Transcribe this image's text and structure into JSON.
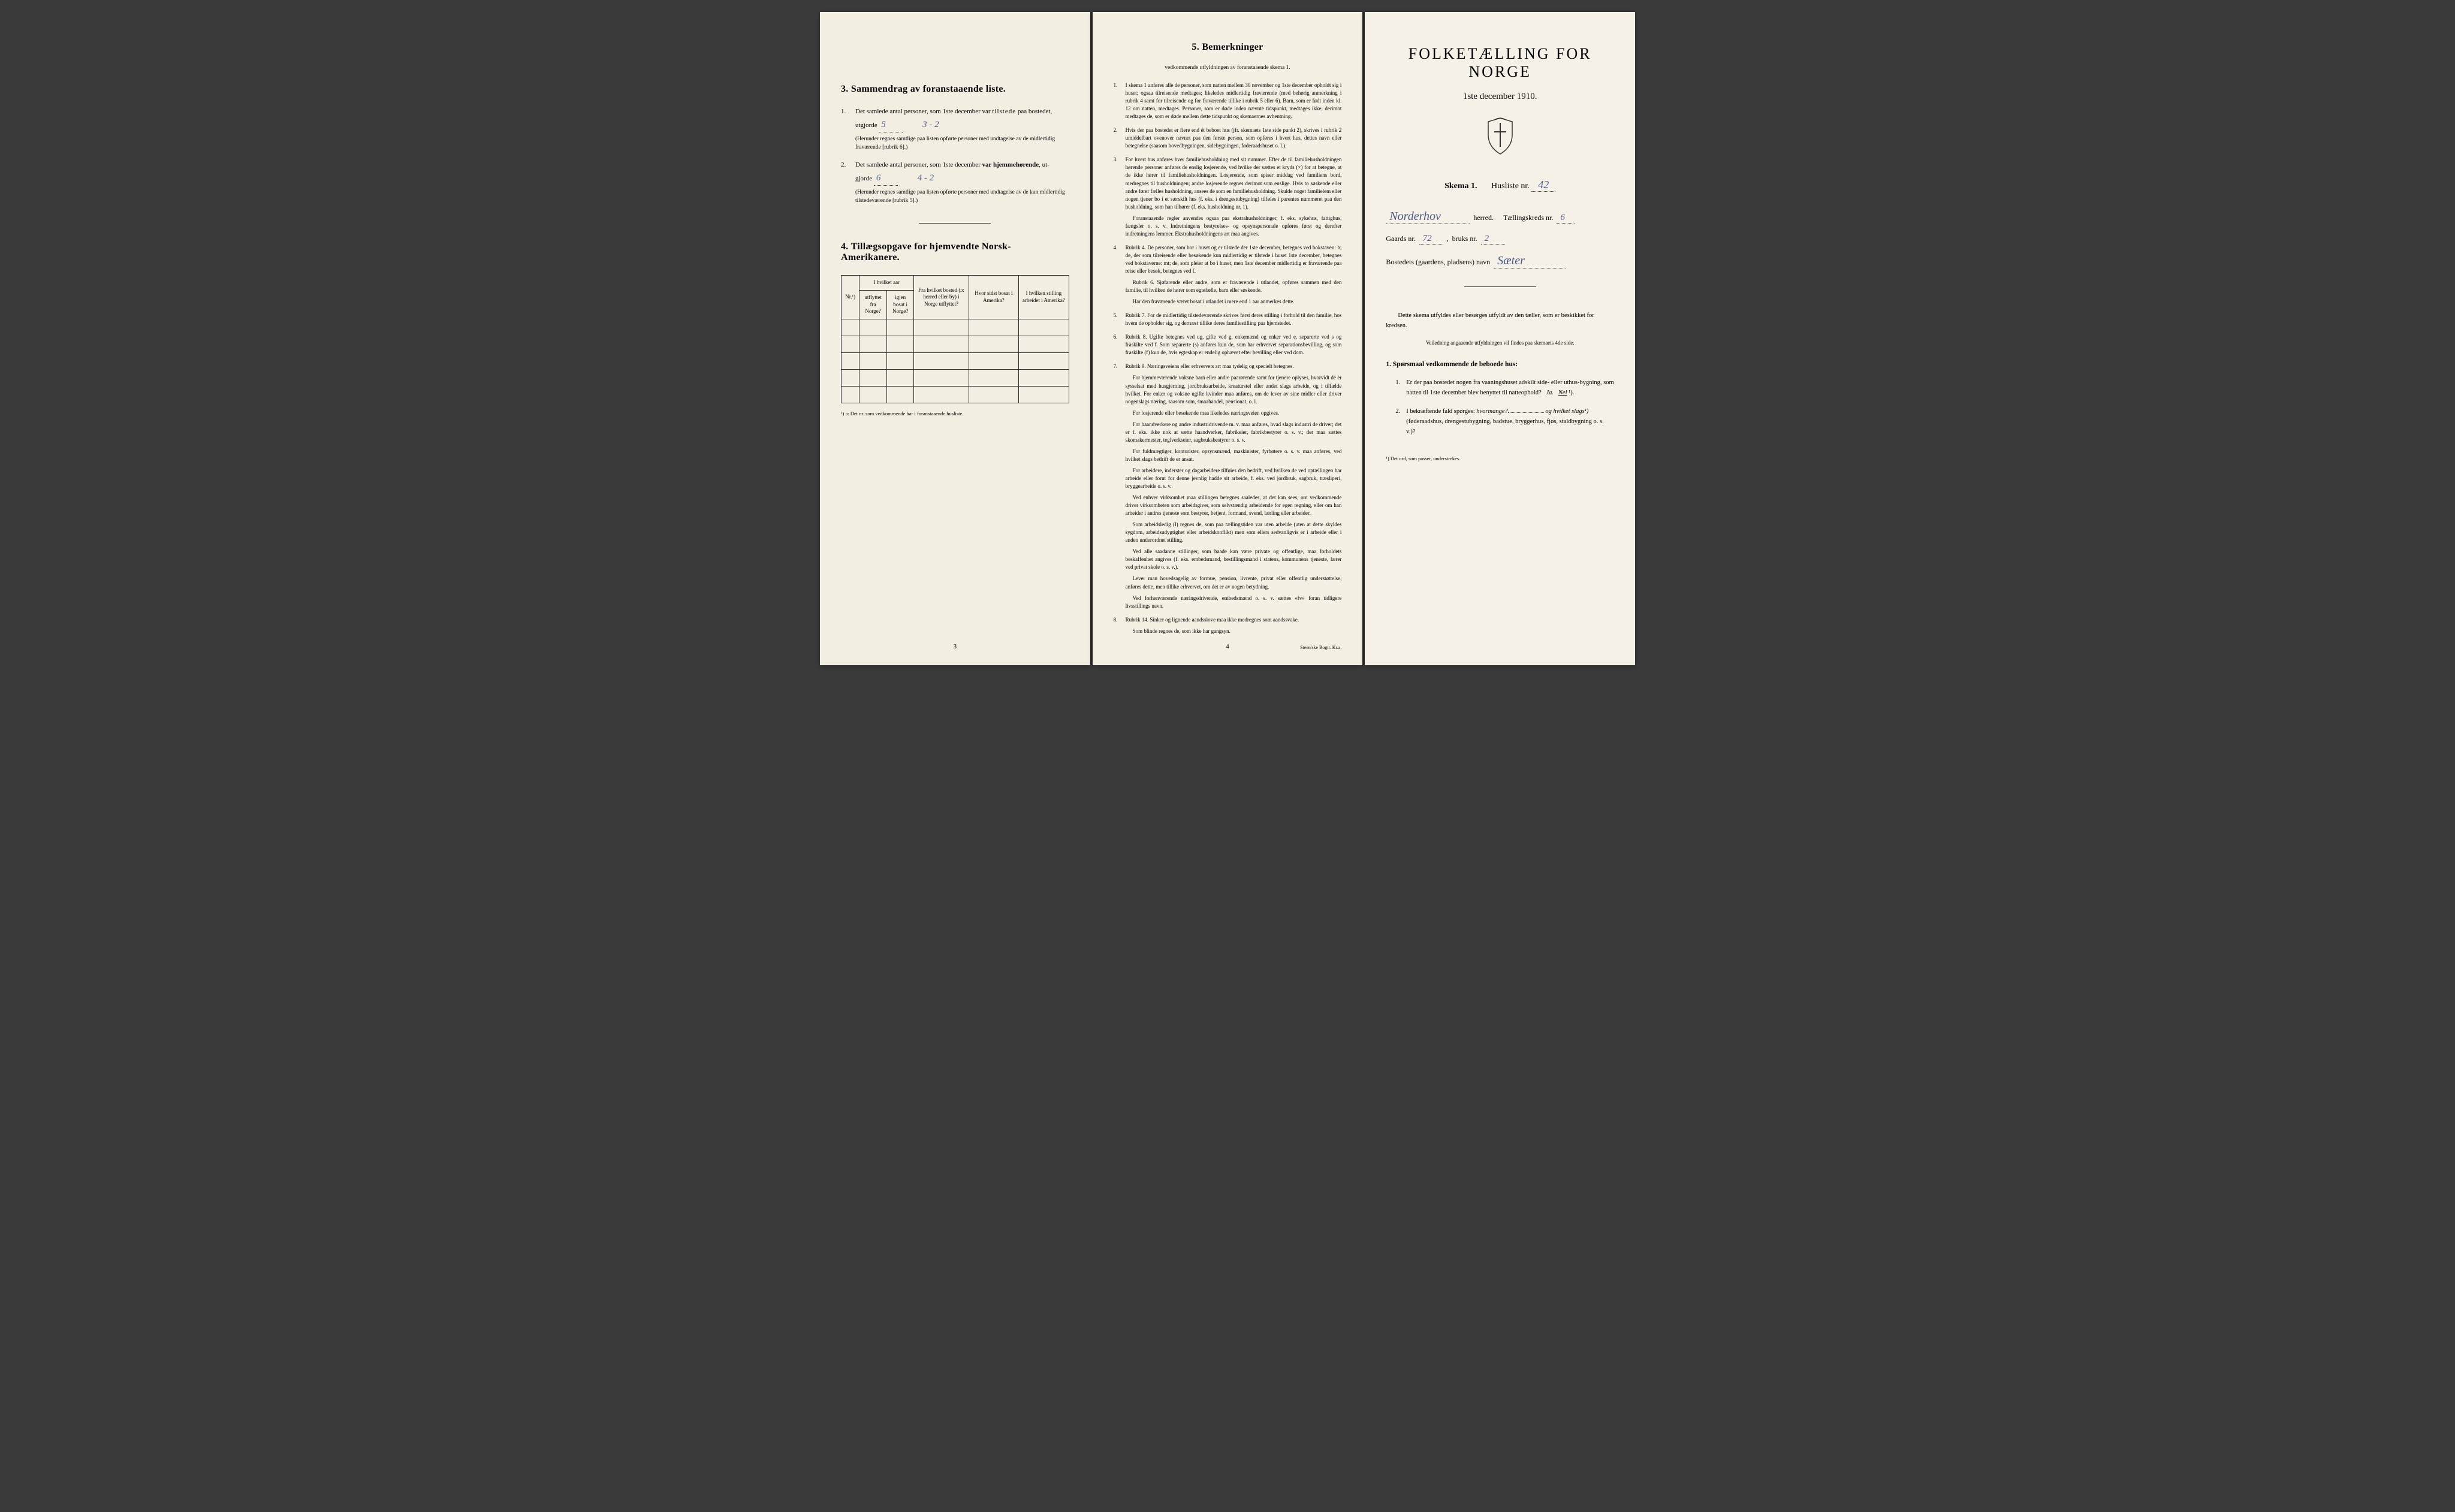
{
  "left": {
    "section3": {
      "title": "3.  Sammendrag av foranstaaende liste.",
      "item1": {
        "num": "1.",
        "text_a": "Det samlede antal personer, som 1ste december var ",
        "text_b": "tilstede",
        "text_c": " paa bostedet,",
        "text_d": "utgjorde",
        "value": "5",
        "value2": "3 - 2",
        "note": "(Herunder regnes samtlige paa listen opførte personer med undtagelse av de midlertidig fraværende [rubrik 6].)"
      },
      "item2": {
        "num": "2.",
        "text_a": "Det samlede antal personer, som 1ste december ",
        "text_b": "var hjemmehørende",
        "text_c": ", ut-",
        "text_d": "gjorde",
        "value": "6",
        "value2": "4 - 2",
        "note": "(Herunder regnes samtlige paa listen opførte personer med undtagelse av de kun midlertidig tilstedeværende [rubrik 5].)"
      }
    },
    "section4": {
      "title": "4.  Tillægsopgave for hjemvendte Norsk-Amerikanere.",
      "headers": {
        "col1": "Nr.¹)",
        "col2a": "I hvilket aar",
        "col2b": "utflyttet fra Norge?",
        "col2c": "igjen bosat i Norge?",
        "col3": "Fra hvilket bosted (ɔ: herred eller by) i Norge utflyttet?",
        "col4": "Hvor sidst bosat i Amerika?",
        "col5": "I hvilken stilling arbeidet i Amerika?"
      },
      "footnote": "¹) ɔ: Det nr. som vedkommende har i foranstaaende husliste."
    },
    "page_num": "3"
  },
  "middle": {
    "section5": {
      "title": "5.  Bemerkninger",
      "subtitle": "vedkommende utfyldningen av foranstaaende skema 1.",
      "items": [
        {
          "num": "1.",
          "text": "I skema 1 anføres alle de personer, som natten mellem 30 november og 1ste december opholdt sig i huset; ogsaa tilreisende medtages; likeledes midlertidig fraværende (med behørig anmerkning i rubrik 4 samt for tilreisende og for fraværende tillike i rubrik 5 eller 6). Barn, som er født inden kl. 12 om natten, medtages. Personer, som er døde inden nævnte tidspunkt, medtages ikke; derimot medtages de, som er døde mellem dette tidspunkt og skemaernes avhentning."
        },
        {
          "num": "2.",
          "text": "Hvis der paa bostedet er flere end ét beboet hus (jfr. skemaets 1ste side punkt 2), skrives i rubrik 2 umiddelbart ovenover navnet paa den første person, som opføres i hvert hus, dettes navn eller betegnelse (saasom hovedbygningen, sidebygningen, føderaadshuset o. l.)."
        },
        {
          "num": "3.",
          "text": "For hvert hus anføres hver familiehusholdning med sit nummer. Efter de til familiehusholdningen hørende personer anføres de enslig losjerende, ved hvilke der sættes et kryds (×) for at betegne, at de ikke hører til familiehusholdningen. Losjerende, som spiser middag ved familiens bord, medregnes til husholdningen; andre losjerende regnes derimot som enslige. Hvis to søskende eller andre fører fælles husholdning, ansees de som en familiehusholdning. Skulde noget familielem eller nogen tjener bo i et særskilt hus (f. eks. i drengestubygning) tilføies i parentes nummeret paa den husholdning, som han tilhører (f. eks. husholdning nr. 1).",
          "para2": "Foranstaaende regler anvendes ogsaa paa ekstrahusholdninger, f. eks. sykehus, fattighus, fængsler o. s. v. Indretningens bestyrelses- og opsynspersonale opføres først og derefter indretningens lemmer. Ekstrahusholdningens art maa angives."
        },
        {
          "num": "4.",
          "text": "Rubrik 4. De personer, som bor i huset og er tilstede der 1ste december, betegnes ved bokstaven: b; de, der som tilreisende eller besøkende kun midlertidig er tilstede i huset 1ste december, betegnes ved bokstaverne: mt; de, som pleier at bo i huset, men 1ste december midlertidig er fraværende paa reise eller besøk, betegnes ved f.",
          "para2": "Rubrik 6. Sjøfarende eller andre, som er fraværende i utlandet, opføres sammen med den familie, til hvilken de hører som egtefælle, barn eller søskende.",
          "para3": "Har den fraværende været bosat i utlandet i mere end 1 aar anmerkes dette."
        },
        {
          "num": "5.",
          "text": "Rubrik 7. For de midlertidig tilstedeværende skrives først deres stilling i forhold til den familie, hos hvem de opholder sig, og dernæst tillike deres familiestilling paa hjemstedet."
        },
        {
          "num": "6.",
          "text": "Rubrik 8. Ugifte betegnes ved ug, gifte ved g, enkemænd og enker ved e, separerte ved s og fraskilte ved f. Som separerte (s) anføres kun de, som har erhvervet separationsbevilling, og som fraskilte (f) kun de, hvis egteskap er endelig ophævet efter bevilling eller ved dom."
        },
        {
          "num": "7.",
          "text": "Rubrik 9. Næringsveiens eller erhvervets art maa tydelig og specielt betegnes.",
          "para2": "For hjemmeværende voksne barn eller andre paarørende samt for tjenere oplyses, hvorvidt de er sysselsat med husgjerning, jordbruksarbeide, kreaturstel eller andet slags arbeide, og i tilfælde hvilket. For enker og voksne ugifte kvinder maa anføres, om de lever av sine midler eller driver nogenslags næring, saasom som, smaahandel, pensionat, o. l.",
          "para3": "For losjerende eller besøkende maa likeledes næringsveien opgives.",
          "para4": "For haandverkere og andre industridrivende m. v. maa anføres, hvad slags industri de driver; det er f. eks. ikke nok at sætte haandverker, fabrikeier, fabrikbestyrer o. s. v.; der maa sættes skomakermester, teglverkseier, sagbruksbestyrer o. s. v.",
          "para5": "For fuldmægtiger, kontorister, opsynsmænd, maskinister, fyrbøtere o. s. v. maa anføres, ved hvilket slags bedrift de er ansat.",
          "para6": "For arbeidere, inderster og dagarbeidere tilføies den bedrift, ved hvilken de ved optællingen har arbeide eller forut for denne jevnlig hadde sit arbeide, f. eks. ved jordbruk, sagbruk, træsliperi, bryggearbeide o. s. v.",
          "para7": "Ved enhver virksomhet maa stillingen betegnes saaledes, at det kan sees, om vedkommende driver virksomheten som arbeidsgiver, som selvstændig arbeidende for egen regning, eller om han arbeider i andres tjeneste som bestyrer, betjent, formand, svend, lærling eller arbeider.",
          "para8": "Som arbeidsledig (l) regnes de, som paa tællingstiden var uten arbeide (uten at dette skyldes sygdom, arbeidsudygtighet eller arbeidskonflikt) men som ellers sedvanligvis er i arbeide eller i anden underordnet stilling.",
          "para9": "Ved alle saadanne stillinger, som baade kan være private og offentlige, maa forholdets beskaffenhet angives (f. eks. embedsmand, bestillingsmand i statens, kommunens tjeneste, lærer ved privat skole o. s. v.).",
          "para10": "Lever man hovedsagelig av formue, pension, livrente, privat eller offentlig understøttelse, anføres dette, men tillike erhvervet, om det er av nogen betydning.",
          "para11": "Ved forhenværende næringsdrivende, embedsmænd o. s. v. sættes «fv» foran tidligere livsstillings navn."
        },
        {
          "num": "8.",
          "text": "Rubrik 14. Sinker og lignende aandsslove maa ikke medregnes som aandssvake.",
          "para2": "Som blinde regnes de, som ikke har gangsyn."
        }
      ]
    },
    "page_num": "4",
    "print": "Steen'ske Bogtr. Kr.a."
  },
  "right": {
    "main_title": "FOLKETÆLLING FOR NORGE",
    "sub_date": "1ste december 1910.",
    "skema": "Skema 1.",
    "husliste_label": "Husliste nr.",
    "husliste_nr": "42",
    "herred_name": "Norderhov",
    "herred_label": "herred.",
    "kreds_label": "Tællingskreds nr.",
    "kreds_nr": "6",
    "gaards_label": "Gaards nr.",
    "gaards_nr": "72",
    "bruks_label": "bruks nr.",
    "bruks_nr": "2",
    "bosted_label": "Bostedets (gaardens, pladsens) navn",
    "bosted_name": "Sæter",
    "instructions_lead": "Dette skema utfyldes eller besørges utfyldt av den tæller, som er beskikket for kredsen.",
    "instructions_sub": "Veiledning angaaende utfyldningen vil findes paa skemaets 4de side.",
    "q_heading": "1. Spørsmaal vedkommende de beboede hus:",
    "q1": {
      "num": "1.",
      "text": "Er der paa bostedet nogen fra vaaningshuset adskilt side- eller uthus-bygning, som natten til 1ste december blev benyttet til natteophold?",
      "ja": "Ja.",
      "nei": "Nei"
    },
    "q2": {
      "num": "2.",
      "text_a": "I bekræftende fald spørges: ",
      "text_b": "hvormange?",
      "text_c": " og ",
      "text_d": "hvilket slags¹)",
      "text_e": " (føderaadshus, drengestubygning, badstue, bryggerhus, fjøs, staldbygning o. s. v.)?"
    },
    "footnote": "¹) Det ord, som passer, understrekes."
  }
}
